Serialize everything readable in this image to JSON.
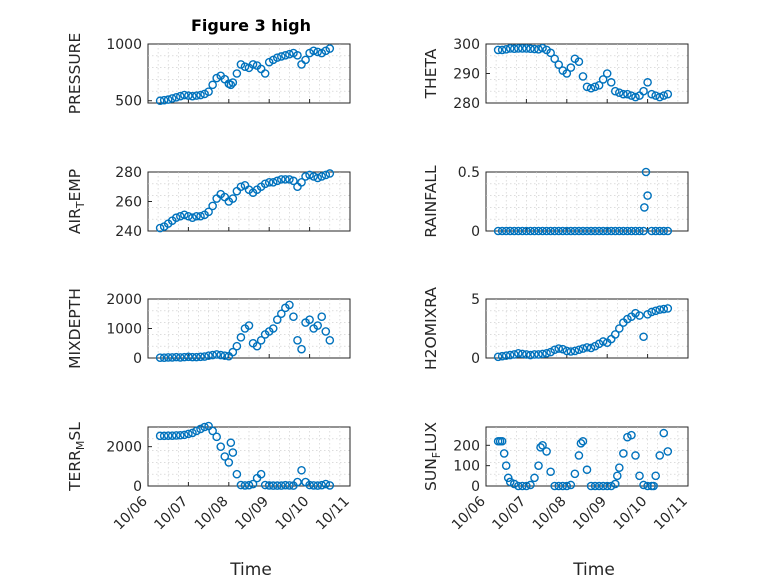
{
  "figure": {
    "title": "Figure 3 high",
    "marker_color": "#0072BD",
    "x_label": "Time",
    "x_tick_labels": [
      "10/06",
      "10/07",
      "10/08",
      "10/09",
      "10/10",
      "10/11"
    ]
  },
  "chart_data": [
    {
      "type": "scatter",
      "title": "Figure 3 high",
      "ylabel": "PRESSURE",
      "ylim": [
        480,
        1000
      ],
      "yticks": [
        500,
        1000
      ],
      "xlim": [
        0,
        5
      ],
      "series": [
        {
          "name": "PRESSURE",
          "x": [
            0.3,
            0.4,
            0.5,
            0.6,
            0.7,
            0.8,
            0.9,
            1.0,
            1.1,
            1.2,
            1.3,
            1.4,
            1.5,
            1.6,
            1.7,
            1.8,
            1.9,
            2.0,
            2.05,
            2.1,
            2.2,
            2.3,
            2.4,
            2.5,
            2.6,
            2.7,
            2.8,
            2.9,
            3.0,
            3.1,
            3.2,
            3.3,
            3.4,
            3.5,
            3.6,
            3.7,
            3.8,
            3.9,
            4.0,
            4.1,
            4.2,
            4.3,
            4.4,
            4.5
          ],
          "y": [
            500,
            505,
            510,
            520,
            530,
            540,
            550,
            545,
            540,
            545,
            550,
            560,
            580,
            640,
            700,
            720,
            690,
            650,
            640,
            660,
            740,
            820,
            800,
            790,
            820,
            810,
            780,
            740,
            840,
            860,
            880,
            890,
            900,
            910,
            920,
            900,
            820,
            860,
            920,
            940,
            930,
            920,
            940,
            960
          ]
        }
      ]
    },
    {
      "type": "scatter",
      "ylabel": "THETA",
      "ylim": [
        280,
        300
      ],
      "yticks": [
        280,
        290,
        300
      ],
      "xlim": [
        0,
        5
      ],
      "series": [
        {
          "name": "THETA",
          "x": [
            0.3,
            0.4,
            0.5,
            0.6,
            0.7,
            0.8,
            0.9,
            1.0,
            1.1,
            1.2,
            1.3,
            1.4,
            1.5,
            1.6,
            1.7,
            1.8,
            1.9,
            2.0,
            2.1,
            2.2,
            2.3,
            2.4,
            2.5,
            2.6,
            2.7,
            2.8,
            2.9,
            3.0,
            3.1,
            3.2,
            3.3,
            3.4,
            3.5,
            3.6,
            3.7,
            3.8,
            3.9,
            4.0,
            4.1,
            4.2,
            4.3,
            4.4,
            4.5
          ],
          "y": [
            298,
            298,
            298.2,
            298.5,
            298.4,
            298.5,
            298.5,
            298.5,
            298.4,
            298.3,
            298.2,
            298.6,
            298,
            297,
            295,
            293,
            291,
            290,
            292,
            295,
            294,
            289,
            285.5,
            285,
            285.5,
            286,
            288,
            290,
            287,
            284,
            283.5,
            283,
            283,
            282.5,
            282,
            282.5,
            284,
            287,
            283,
            282.5,
            282,
            282.5,
            283
          ]
        }
      ]
    },
    {
      "type": "scatter",
      "ylabel": "AIR_TEMP",
      "ylim": [
        240,
        280
      ],
      "yticks": [
        240,
        260,
        280
      ],
      "xlim": [
        0,
        5
      ],
      "series": [
        {
          "name": "AIR_TEMP",
          "x": [
            0.3,
            0.4,
            0.5,
            0.6,
            0.7,
            0.8,
            0.9,
            1.0,
            1.1,
            1.2,
            1.3,
            1.4,
            1.5,
            1.6,
            1.7,
            1.8,
            1.9,
            2.0,
            2.1,
            2.2,
            2.3,
            2.4,
            2.5,
            2.6,
            2.7,
            2.8,
            2.9,
            3.0,
            3.1,
            3.2,
            3.3,
            3.4,
            3.5,
            3.6,
            3.7,
            3.8,
            3.9,
            4.0,
            4.1,
            4.2,
            4.3,
            4.4,
            4.5
          ],
          "y": [
            242,
            243,
            245,
            247,
            249,
            250,
            251,
            250,
            249,
            250,
            250,
            251,
            253,
            257,
            262,
            265,
            263,
            260,
            262,
            267,
            270,
            271,
            268,
            266,
            268,
            270,
            272,
            273,
            273,
            274,
            275,
            275,
            275,
            274,
            270,
            273,
            277,
            278,
            277,
            276,
            277,
            278,
            279
          ]
        }
      ]
    },
    {
      "type": "scatter",
      "ylabel": "RAINFALL",
      "ylim": [
        0,
        0.5
      ],
      "yticks": [
        0,
        0.5
      ],
      "xlim": [
        0,
        5
      ],
      "series": [
        {
          "name": "RAINFALL",
          "x": [
            0.3,
            0.4,
            0.5,
            0.6,
            0.7,
            0.8,
            0.9,
            1.0,
            1.1,
            1.2,
            1.3,
            1.4,
            1.5,
            1.6,
            1.7,
            1.8,
            1.9,
            2.0,
            2.1,
            2.2,
            2.3,
            2.4,
            2.5,
            2.6,
            2.7,
            2.8,
            2.9,
            3.0,
            3.1,
            3.2,
            3.3,
            3.4,
            3.5,
            3.6,
            3.7,
            3.8,
            3.9,
            3.92,
            3.96,
            4.0,
            4.1,
            4.2,
            4.3,
            4.4,
            4.5
          ],
          "y": [
            0,
            0,
            0,
            0,
            0,
            0,
            0,
            0,
            0,
            0,
            0,
            0,
            0,
            0,
            0,
            0,
            0,
            0,
            0,
            0,
            0,
            0,
            0,
            0,
            0,
            0,
            0,
            0,
            0,
            0,
            0,
            0,
            0,
            0,
            0,
            0,
            0,
            0.2,
            0.5,
            0.3,
            0,
            0,
            0,
            0,
            0
          ]
        }
      ]
    },
    {
      "type": "scatter",
      "ylabel": "MIXDEPTH",
      "ylim": [
        0,
        2000
      ],
      "yticks": [
        0,
        1000,
        2000
      ],
      "xlim": [
        0,
        5
      ],
      "series": [
        {
          "name": "MIXDEPTH",
          "x": [
            0.3,
            0.4,
            0.5,
            0.6,
            0.7,
            0.8,
            0.9,
            1.0,
            1.1,
            1.2,
            1.3,
            1.4,
            1.5,
            1.6,
            1.7,
            1.8,
            1.9,
            2.0,
            2.1,
            2.2,
            2.3,
            2.4,
            2.5,
            2.6,
            2.7,
            2.8,
            2.9,
            3.0,
            3.1,
            3.2,
            3.3,
            3.4,
            3.5,
            3.6,
            3.7,
            3.8,
            3.9,
            4.0,
            4.1,
            4.2,
            4.3,
            4.4,
            4.5
          ],
          "y": [
            10,
            10,
            20,
            20,
            30,
            20,
            30,
            40,
            30,
            30,
            40,
            50,
            80,
            100,
            120,
            100,
            80,
            60,
            200,
            400,
            700,
            1000,
            1100,
            500,
            400,
            600,
            800,
            900,
            1000,
            1300,
            1500,
            1700,
            1800,
            1400,
            600,
            300,
            1200,
            1300,
            1000,
            1100,
            1400,
            900,
            600
          ]
        }
      ]
    },
    {
      "type": "scatter",
      "ylabel": "H2OMIXRA",
      "ylim": [
        0,
        5
      ],
      "yticks": [
        0,
        5
      ],
      "xlim": [
        0,
        5
      ],
      "series": [
        {
          "name": "H2OMIXRA",
          "x": [
            0.3,
            0.4,
            0.5,
            0.6,
            0.7,
            0.8,
            0.9,
            1.0,
            1.1,
            1.2,
            1.3,
            1.4,
            1.5,
            1.6,
            1.7,
            1.8,
            1.9,
            2.0,
            2.1,
            2.2,
            2.3,
            2.4,
            2.5,
            2.6,
            2.7,
            2.8,
            2.9,
            3.0,
            3.1,
            3.2,
            3.3,
            3.4,
            3.5,
            3.6,
            3.7,
            3.8,
            3.9,
            4.0,
            4.1,
            4.2,
            4.3,
            4.4,
            4.5
          ],
          "y": [
            0.1,
            0.15,
            0.2,
            0.25,
            0.3,
            0.4,
            0.35,
            0.3,
            0.25,
            0.3,
            0.3,
            0.35,
            0.4,
            0.5,
            0.7,
            0.8,
            0.75,
            0.6,
            0.55,
            0.6,
            0.7,
            0.8,
            0.9,
            0.85,
            1.0,
            1.2,
            1.4,
            1.3,
            1.6,
            2.0,
            2.5,
            3.0,
            3.3,
            3.5,
            3.8,
            3.6,
            1.8,
            3.7,
            3.9,
            4.0,
            4.1,
            4.15,
            4.2
          ]
        }
      ]
    },
    {
      "type": "scatter",
      "ylabel": "TERR_MSL",
      "ylim": [
        0,
        3000
      ],
      "yticks": [
        0,
        2000
      ],
      "xlim": [
        0,
        5
      ],
      "series": [
        {
          "name": "TERR_MSL",
          "x": [
            0.3,
            0.4,
            0.5,
            0.6,
            0.7,
            0.8,
            0.9,
            1.0,
            1.1,
            1.2,
            1.3,
            1.4,
            1.5,
            1.6,
            1.7,
            1.8,
            1.9,
            2.0,
            2.05,
            2.1,
            2.2,
            2.3,
            2.4,
            2.5,
            2.6,
            2.7,
            2.8,
            2.9,
            3.0,
            3.1,
            3.2,
            3.3,
            3.4,
            3.5,
            3.6,
            3.7,
            3.8,
            3.9,
            4.0,
            4.1,
            4.2,
            4.3,
            4.4,
            4.5
          ],
          "y": [
            2550,
            2550,
            2560,
            2560,
            2570,
            2580,
            2600,
            2650,
            2700,
            2800,
            2900,
            3000,
            3050,
            2800,
            2500,
            2000,
            1500,
            1200,
            2200,
            1700,
            600,
            50,
            30,
            40,
            100,
            400,
            600,
            50,
            30,
            20,
            20,
            20,
            40,
            30,
            20,
            200,
            800,
            200,
            50,
            30,
            20,
            40,
            100,
            30
          ]
        }
      ]
    },
    {
      "type": "scatter",
      "ylabel": "SUN_FLUX",
      "ylim": [
        0,
        290
      ],
      "yticks": [
        0,
        100,
        200
      ],
      "xlim": [
        0,
        5
      ],
      "series": [
        {
          "name": "SUN_FLUX",
          "x": [
            0.3,
            0.35,
            0.4,
            0.45,
            0.5,
            0.55,
            0.6,
            0.7,
            0.8,
            0.9,
            1.0,
            1.1,
            1.2,
            1.3,
            1.35,
            1.4,
            1.5,
            1.6,
            1.7,
            1.8,
            1.9,
            2.0,
            2.1,
            2.2,
            2.3,
            2.35,
            2.4,
            2.5,
            2.6,
            2.7,
            2.8,
            2.9,
            3.0,
            3.1,
            3.2,
            3.25,
            3.3,
            3.4,
            3.5,
            3.6,
            3.7,
            3.8,
            3.9,
            4.0,
            4.1,
            4.15,
            4.2,
            4.3,
            4.4,
            4.5
          ],
          "y": [
            220,
            220,
            220,
            160,
            100,
            40,
            20,
            10,
            0,
            0,
            0,
            5,
            40,
            100,
            190,
            200,
            170,
            70,
            0,
            0,
            0,
            0,
            5,
            60,
            150,
            210,
            220,
            80,
            0,
            0,
            0,
            0,
            0,
            0,
            10,
            50,
            90,
            160,
            240,
            250,
            150,
            50,
            5,
            0,
            0,
            0,
            50,
            150,
            260,
            170
          ]
        }
      ]
    }
  ]
}
